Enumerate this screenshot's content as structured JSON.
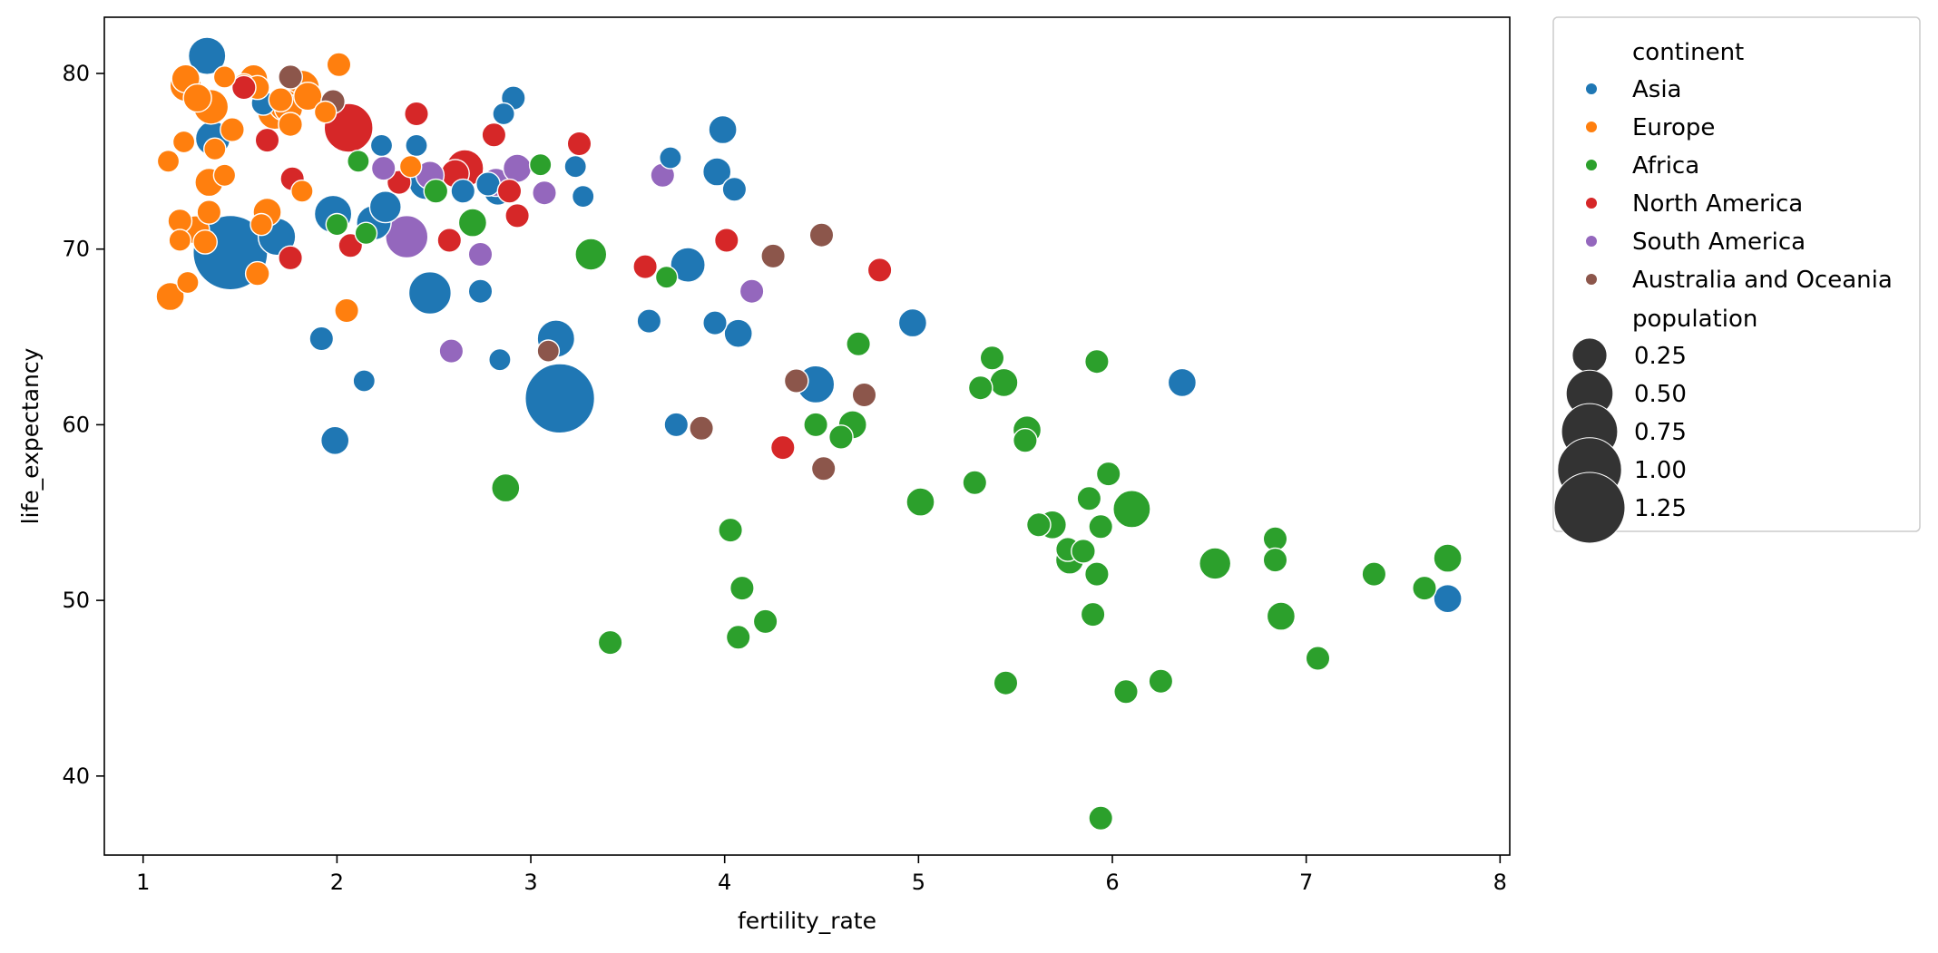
{
  "chart_data": {
    "type": "scatter",
    "title": "",
    "xlabel": "fertility_rate",
    "ylabel": "life_expectancy",
    "xlim": [
      0.8,
      8.05
    ],
    "ylim": [
      35.5,
      83.2
    ],
    "xticks": [
      "1",
      "2",
      "3",
      "4",
      "5",
      "6",
      "7",
      "8"
    ],
    "yticks": [
      "40",
      "50",
      "60",
      "70",
      "80"
    ],
    "grid": false,
    "legend_position": "outside right",
    "hue_title": "continent",
    "size_title": "population",
    "size_legend": [
      "0.25",
      "0.50",
      "0.75",
      "1.00",
      "1.25"
    ],
    "series": [
      {
        "name": "Asia",
        "color": "#1f77b4",
        "points": [
          [
            1.45,
            69.8,
            1.4
          ],
          [
            1.33,
            81.0,
            0.3
          ],
          [
            1.36,
            76.3,
            0.25
          ],
          [
            1.62,
            78.3,
            0.1
          ],
          [
            1.69,
            70.7,
            0.3
          ],
          [
            1.98,
            72.0,
            0.3
          ],
          [
            2.19,
            71.5,
            0.25
          ],
          [
            2.23,
            75.9,
            0.08
          ],
          [
            2.25,
            72.4,
            0.2
          ],
          [
            2.41,
            75.9,
            0.08
          ],
          [
            2.46,
            73.8,
            0.25
          ],
          [
            2.48,
            67.5,
            0.4
          ],
          [
            2.65,
            73.3,
            0.1
          ],
          [
            2.78,
            73.7,
            0.1
          ],
          [
            2.83,
            73.3,
            0.15
          ],
          [
            2.86,
            77.7,
            0.08
          ],
          [
            2.91,
            78.6,
            0.1
          ],
          [
            3.23,
            74.7,
            0.08
          ],
          [
            3.27,
            73.0,
            0.08
          ],
          [
            3.13,
            64.9,
            0.3
          ],
          [
            3.15,
            61.5,
            1.2
          ],
          [
            3.72,
            75.2,
            0.08
          ],
          [
            3.81,
            69.1,
            0.25
          ],
          [
            3.96,
            74.4,
            0.15
          ],
          [
            3.99,
            76.8,
            0.15
          ],
          [
            4.05,
            73.4,
            0.1
          ],
          [
            4.07,
            65.2,
            0.15
          ],
          [
            3.95,
            65.8,
            0.1
          ],
          [
            3.61,
            65.9,
            0.1
          ],
          [
            3.75,
            60.0,
            0.1
          ],
          [
            4.47,
            62.3,
            0.3
          ],
          [
            4.97,
            65.8,
            0.15
          ],
          [
            6.36,
            62.4,
            0.15
          ],
          [
            7.73,
            50.1,
            0.15
          ],
          [
            1.92,
            64.9,
            0.1
          ],
          [
            2.14,
            62.5,
            0.08
          ],
          [
            1.99,
            59.1,
            0.15
          ],
          [
            2.74,
            67.6,
            0.1
          ],
          [
            2.84,
            63.7,
            0.08
          ]
        ]
      },
      {
        "name": "Europe",
        "color": "#ff7f0e",
        "points": [
          [
            1.22,
            79.7,
            0.15
          ],
          [
            1.22,
            79.3,
            0.2
          ],
          [
            1.28,
            78.6,
            0.15
          ],
          [
            1.35,
            78.1,
            0.25
          ],
          [
            1.42,
            79.8,
            0.08
          ],
          [
            1.52,
            79.3,
            0.1
          ],
          [
            1.57,
            79.7,
            0.15
          ],
          [
            1.59,
            79.2,
            0.1
          ],
          [
            1.71,
            78.5,
            0.1
          ],
          [
            1.73,
            78.2,
            0.2
          ],
          [
            1.75,
            78.0,
            0.15
          ],
          [
            1.68,
            77.8,
            0.25
          ],
          [
            1.82,
            79.2,
            0.25
          ],
          [
            1.85,
            78.7,
            0.15
          ],
          [
            1.94,
            77.8,
            0.08
          ],
          [
            2.01,
            80.5,
            0.1
          ],
          [
            1.76,
            77.1,
            0.1
          ],
          [
            1.37,
            75.7,
            0.08
          ],
          [
            1.42,
            74.2,
            0.08
          ],
          [
            1.46,
            76.8,
            0.1
          ],
          [
            1.13,
            75.0,
            0.08
          ],
          [
            1.21,
            76.1,
            0.08
          ],
          [
            1.34,
            73.8,
            0.15
          ],
          [
            1.82,
            73.3,
            0.08
          ],
          [
            1.19,
            71.6,
            0.1
          ],
          [
            1.27,
            71.1,
            0.15
          ],
          [
            1.34,
            72.1,
            0.1
          ],
          [
            1.32,
            70.4,
            0.1
          ],
          [
            1.19,
            70.5,
            0.08
          ],
          [
            1.23,
            68.1,
            0.08
          ],
          [
            1.14,
            67.3,
            0.15
          ],
          [
            1.59,
            68.6,
            0.1
          ],
          [
            1.61,
            71.4,
            0.08
          ],
          [
            1.64,
            72.1,
            0.15
          ],
          [
            2.05,
            66.5,
            0.1
          ],
          [
            2.38,
            74.7,
            0.08
          ]
        ]
      },
      {
        "name": "Africa",
        "color": "#2ca02c",
        "points": [
          [
            2.11,
            75.0,
            0.08
          ],
          [
            2.0,
            71.4,
            0.08
          ],
          [
            2.15,
            70.9,
            0.08
          ],
          [
            2.51,
            73.3,
            0.1
          ],
          [
            2.7,
            71.5,
            0.15
          ],
          [
            3.05,
            74.8,
            0.08
          ],
          [
            3.31,
            69.7,
            0.2
          ],
          [
            3.7,
            68.4,
            0.08
          ],
          [
            2.87,
            56.4,
            0.15
          ],
          [
            3.41,
            47.6,
            0.1
          ],
          [
            4.03,
            54.0,
            0.1
          ],
          [
            4.09,
            50.7,
            0.1
          ],
          [
            4.07,
            47.9,
            0.1
          ],
          [
            4.21,
            48.8,
            0.1
          ],
          [
            4.47,
            60.0,
            0.1
          ],
          [
            4.6,
            59.3,
            0.1
          ],
          [
            4.66,
            60.0,
            0.15
          ],
          [
            4.69,
            64.6,
            0.1
          ],
          [
            5.01,
            55.6,
            0.15
          ],
          [
            5.29,
            56.7,
            0.1
          ],
          [
            5.32,
            62.1,
            0.1
          ],
          [
            5.38,
            63.8,
            0.1
          ],
          [
            5.44,
            62.4,
            0.15
          ],
          [
            5.45,
            45.3,
            0.1
          ],
          [
            5.55,
            59.1,
            0.1
          ],
          [
            5.56,
            59.7,
            0.15
          ],
          [
            5.62,
            54.3,
            0.1
          ],
          [
            5.69,
            54.3,
            0.15
          ],
          [
            5.77,
            52.9,
            0.1
          ],
          [
            5.78,
            52.3,
            0.15
          ],
          [
            5.85,
            52.8,
            0.1
          ],
          [
            5.88,
            55.8,
            0.1
          ],
          [
            5.9,
            49.2,
            0.1
          ],
          [
            5.92,
            51.5,
            0.1
          ],
          [
            5.92,
            63.6,
            0.1
          ],
          [
            5.94,
            54.2,
            0.1
          ],
          [
            5.94,
            37.6,
            0.1
          ],
          [
            5.98,
            57.2,
            0.1
          ],
          [
            6.07,
            44.8,
            0.1
          ],
          [
            6.1,
            55.2,
            0.3
          ],
          [
            6.25,
            45.4,
            0.1
          ],
          [
            6.53,
            52.1,
            0.2
          ],
          [
            6.84,
            53.5,
            0.1
          ],
          [
            6.84,
            52.3,
            0.1
          ],
          [
            6.87,
            49.1,
            0.15
          ],
          [
            7.06,
            46.7,
            0.1
          ],
          [
            7.35,
            51.5,
            0.1
          ],
          [
            7.61,
            50.7,
            0.1
          ],
          [
            7.73,
            52.4,
            0.15
          ]
        ]
      },
      {
        "name": "North America",
        "color": "#d62728",
        "points": [
          [
            1.52,
            79.2,
            0.1
          ],
          [
            1.64,
            76.2,
            0.1
          ],
          [
            1.77,
            74.0,
            0.1
          ],
          [
            1.76,
            69.5,
            0.1
          ],
          [
            2.06,
            76.9,
            0.55
          ],
          [
            2.07,
            70.2,
            0.1
          ],
          [
            2.32,
            73.8,
            0.1
          ],
          [
            2.41,
            77.7,
            0.1
          ],
          [
            2.58,
            70.5,
            0.1
          ],
          [
            2.61,
            74.3,
            0.15
          ],
          [
            2.66,
            74.6,
            0.3
          ],
          [
            2.81,
            76.5,
            0.1
          ],
          [
            2.89,
            73.3,
            0.1
          ],
          [
            2.93,
            71.9,
            0.1
          ],
          [
            3.25,
            76.0,
            0.1
          ],
          [
            3.59,
            69.0,
            0.1
          ],
          [
            4.01,
            70.5,
            0.1
          ],
          [
            4.3,
            58.7,
            0.1
          ],
          [
            4.8,
            68.8,
            0.1
          ]
        ]
      },
      {
        "name": "South America",
        "color": "#9467bd",
        "points": [
          [
            2.24,
            74.6,
            0.1
          ],
          [
            2.36,
            70.7,
            0.4
          ],
          [
            2.48,
            74.2,
            0.15
          ],
          [
            2.59,
            64.2,
            0.1
          ],
          [
            2.74,
            69.7,
            0.1
          ],
          [
            2.82,
            73.8,
            0.15
          ],
          [
            2.93,
            74.6,
            0.15
          ],
          [
            3.07,
            73.2,
            0.1
          ],
          [
            3.68,
            74.2,
            0.1
          ],
          [
            4.14,
            67.6,
            0.1
          ]
        ]
      },
      {
        "name": "Australia and Oceania",
        "color": "#8c564b",
        "points": [
          [
            1.76,
            79.8,
            0.1
          ],
          [
            1.98,
            78.4,
            0.1
          ],
          [
            3.09,
            64.2,
            0.08
          ],
          [
            3.88,
            59.8,
            0.1
          ],
          [
            4.25,
            69.6,
            0.1
          ],
          [
            4.37,
            62.5,
            0.1
          ],
          [
            4.5,
            70.8,
            0.1
          ],
          [
            4.51,
            57.5,
            0.1
          ],
          [
            4.72,
            61.7,
            0.1
          ]
        ]
      }
    ]
  }
}
